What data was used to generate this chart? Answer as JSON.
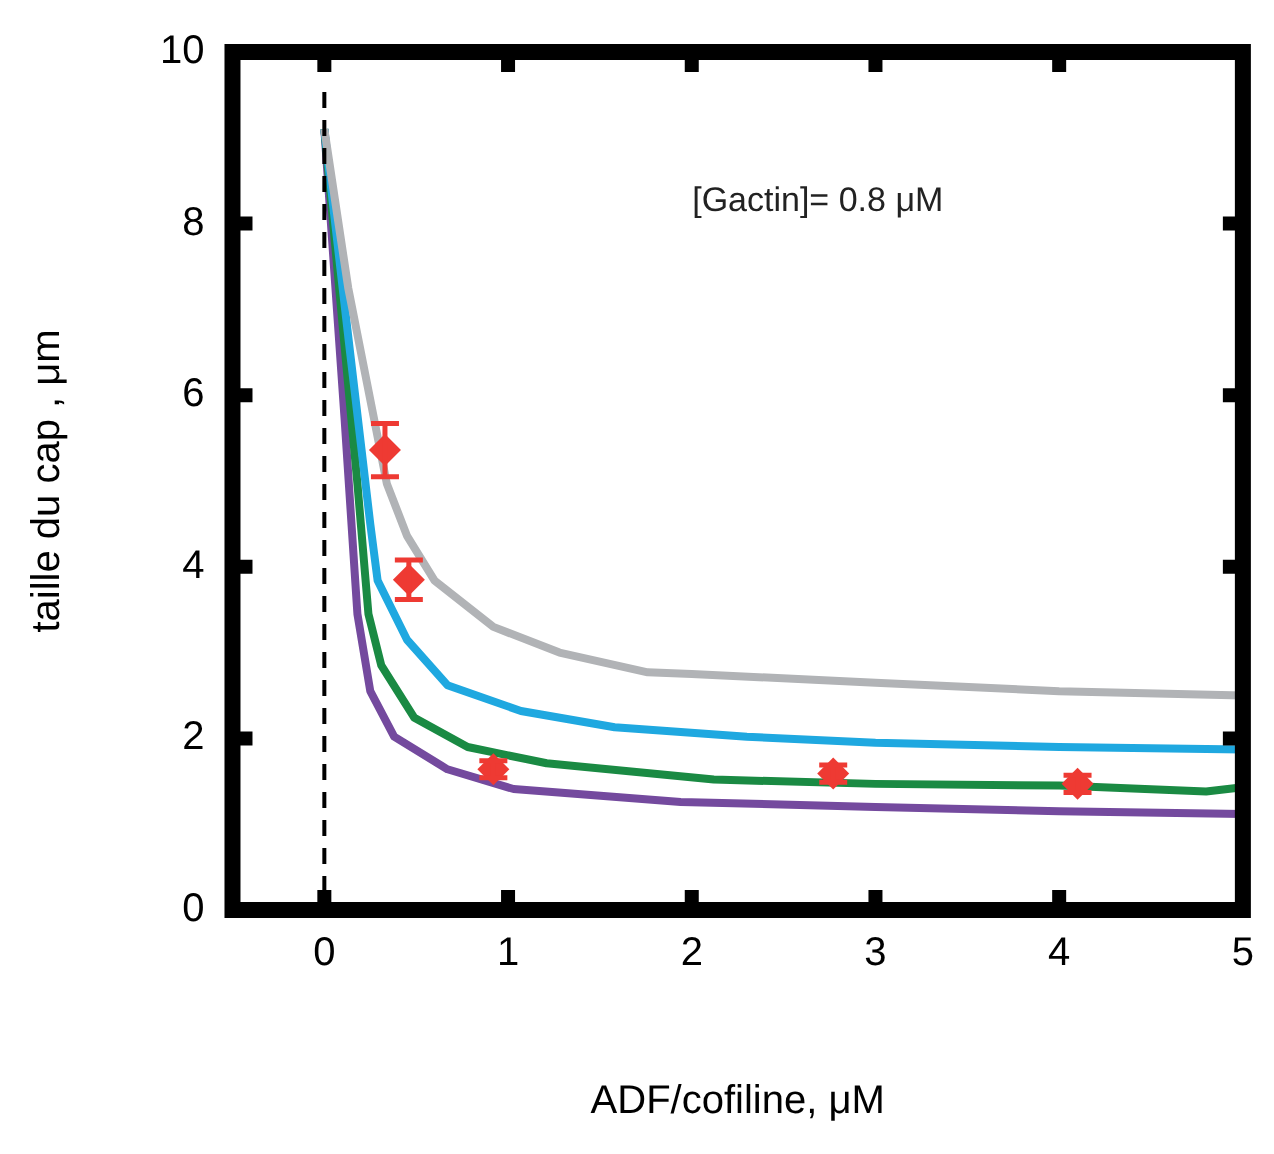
{
  "chart_data": {
    "type": "line",
    "xlabel": "ADF/cofiline, μM",
    "ylabel": "taille du cap , μm",
    "xlim": [
      -0.5,
      5
    ],
    "ylim": [
      0,
      10
    ],
    "xticks": [
      0,
      1,
      2,
      3,
      4,
      5
    ],
    "yticks": [
      0,
      2,
      4,
      6,
      8,
      10
    ],
    "grid": false,
    "legend": false,
    "marker": "none",
    "line_style": "solid",
    "annotations": [
      "[Gactin]= 0.8 μM"
    ],
    "ref_lines": [
      {
        "axis": "x",
        "value": 0,
        "color": "#000000",
        "line_style": "dashed"
      }
    ],
    "series": [
      {
        "color": "#b1b3b6",
        "x": [
          0,
          0.13,
          0.34,
          0.45,
          0.6,
          0.92,
          1.28,
          1.76,
          2,
          3,
          4,
          5
        ],
        "values": [
          9.1,
          7.25,
          4.97,
          4.36,
          3.84,
          3.3,
          3.0,
          2.77,
          2.75,
          2.65,
          2.55,
          2.5
        ]
      },
      {
        "color": "#1fa8e0",
        "x": [
          0,
          0.14,
          0.25,
          0.29,
          0.45,
          0.67,
          1.07,
          1.58,
          2.3,
          3,
          4,
          5
        ],
        "values": [
          9.1,
          6.5,
          4.5,
          3.84,
          3.15,
          2.62,
          2.32,
          2.13,
          2.02,
          1.95,
          1.9,
          1.87
        ]
      },
      {
        "color": "#1a8a43",
        "x": [
          0,
          0.18,
          0.24,
          0.31,
          0.49,
          0.78,
          1.21,
          2.12,
          3,
          4,
          4.8,
          5
        ],
        "values": [
          9.1,
          4.97,
          3.45,
          2.85,
          2.24,
          1.9,
          1.71,
          1.52,
          1.47,
          1.45,
          1.38,
          1.43
        ]
      },
      {
        "color": "#744a9e",
        "x": [
          0,
          0.11,
          0.18,
          0.25,
          0.38,
          0.67,
          1.03,
          1.94,
          3,
          4,
          5
        ],
        "values": [
          9.1,
          5.73,
          3.45,
          2.55,
          2.02,
          1.64,
          1.41,
          1.26,
          1.2,
          1.15,
          1.12
        ]
      },
      {
        "type": "scatter",
        "marker": "diamond",
        "color": "#ee3a33",
        "x": [
          0.33,
          0.46,
          0.92,
          2.77,
          4.1
        ],
        "values": [
          5.36,
          3.85,
          1.64,
          1.59,
          1.47
        ],
        "errors": [
          0.31,
          0.23,
          0.1,
          0.1,
          0.1
        ]
      }
    ]
  }
}
